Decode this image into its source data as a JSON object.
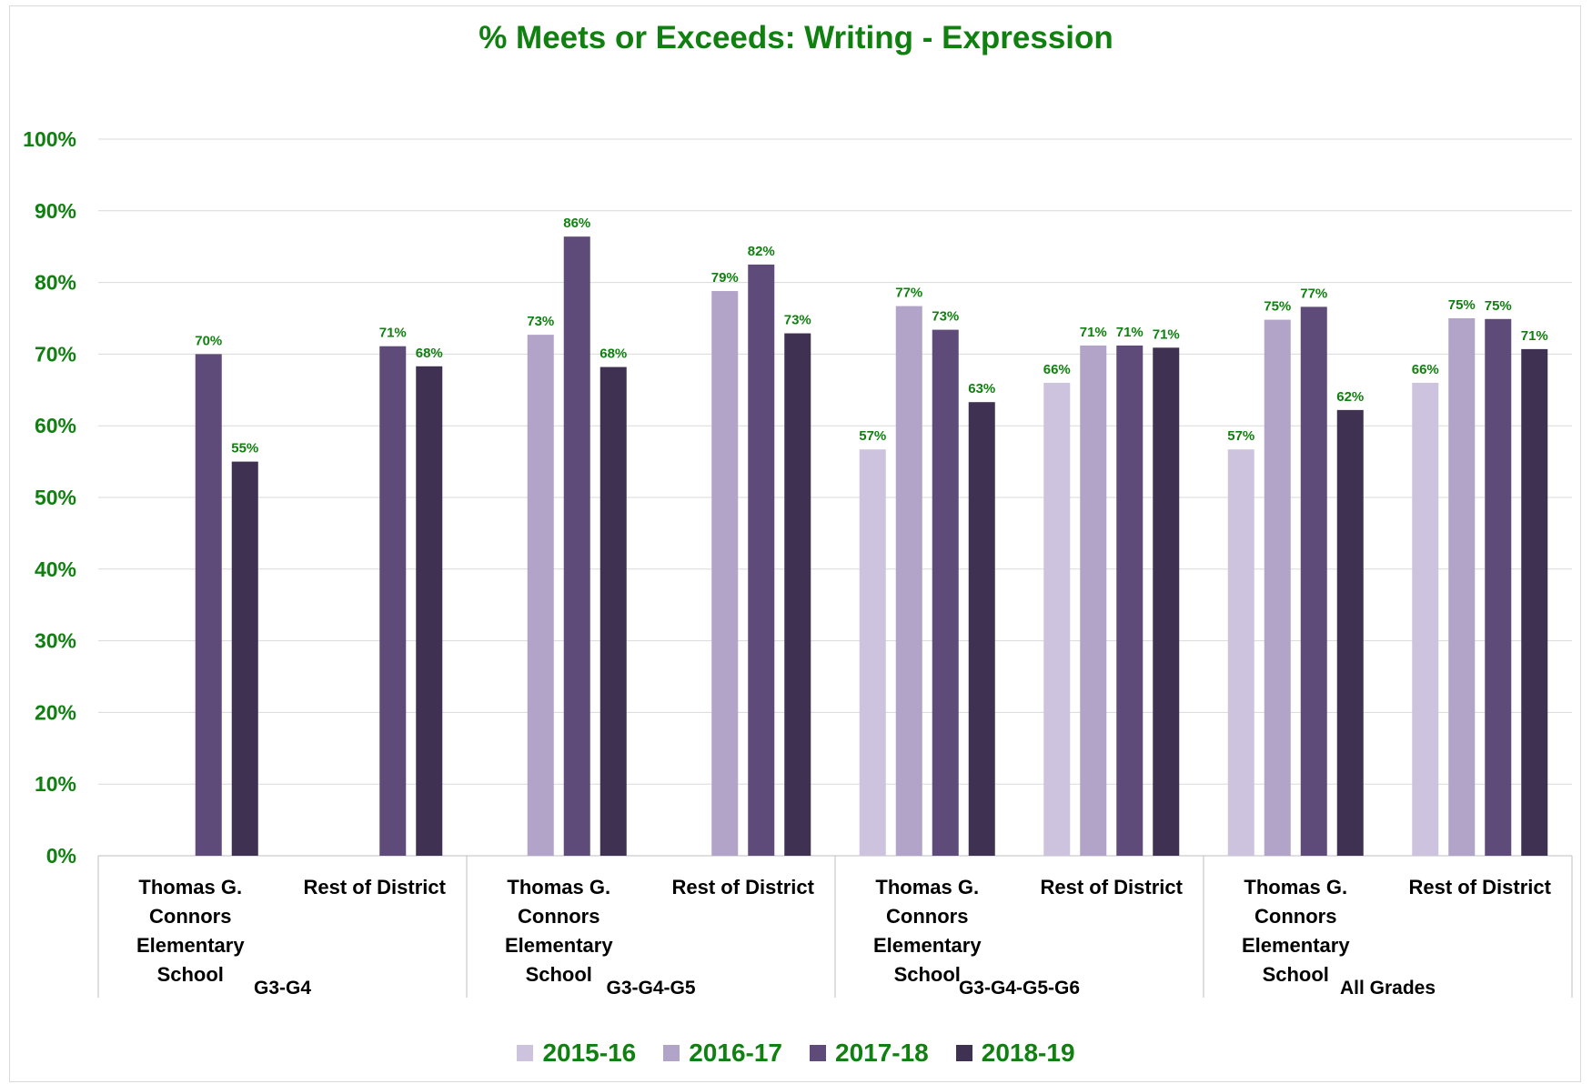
{
  "chart_data": {
    "type": "bar",
    "title": "% Meets or Exceeds: Writing - Expression",
    "ylim": [
      0,
      100
    ],
    "y_ticks": [
      "0%",
      "10%",
      "20%",
      "30%",
      "40%",
      "50%",
      "60%",
      "70%",
      "80%",
      "90%",
      "100%"
    ],
    "groups": [
      {
        "label": "G3-G4",
        "categories": [
          "Thomas G. Connors Elementary School",
          "Rest of District"
        ]
      },
      {
        "label": "G3-G4-G5",
        "categories": [
          "Thomas G. Connors Elementary School",
          "Rest of District"
        ]
      },
      {
        "label": "G3-G4-G5-G6",
        "categories": [
          "Thomas G. Connors Elementary School",
          "Rest of District"
        ]
      },
      {
        "label": "All Grades",
        "categories": [
          "Thomas G. Connors Elementary School",
          "Rest of District"
        ]
      }
    ],
    "categories": [
      "Thomas G. Connors Elementary School",
      "Rest of District",
      "Thomas G. Connors Elementary School",
      "Rest of District",
      "Thomas G. Connors Elementary School",
      "Rest of District",
      "Thomas G. Connors Elementary School",
      "Rest of District"
    ],
    "series": [
      {
        "name": "2015-16",
        "color": "#cdc3de",
        "values": [
          null,
          null,
          null,
          null,
          56.7,
          66.0,
          56.7,
          66.0
        ],
        "labels": [
          null,
          null,
          null,
          null,
          "57%",
          "66%",
          "57%",
          "66%"
        ]
      },
      {
        "name": "2016-17",
        "color": "#b2a3c9",
        "values": [
          null,
          null,
          72.7,
          78.8,
          76.7,
          71.2,
          74.8,
          75.0
        ],
        "labels": [
          null,
          null,
          "73%",
          "79%",
          "77%",
          "71%",
          "75%",
          "75%"
        ]
      },
      {
        "name": "2017-18",
        "color": "#5f4b79",
        "values": [
          70.0,
          71.1,
          86.4,
          82.5,
          73.4,
          71.2,
          76.6,
          74.9
        ],
        "labels": [
          "70%",
          "71%",
          "86%",
          "82%",
          "73%",
          "71%",
          "77%",
          "75%"
        ]
      },
      {
        "name": "2018-19",
        "color": "#3f3152",
        "values": [
          55.0,
          68.3,
          68.2,
          72.9,
          63.3,
          70.9,
          62.2,
          70.7
        ],
        "labels": [
          "55%",
          "68%",
          "68%",
          "73%",
          "63%",
          "71%",
          "62%",
          "71%"
        ]
      }
    ],
    "grid": true,
    "legend_position": "bottom",
    "accent_color": "#108010"
  }
}
